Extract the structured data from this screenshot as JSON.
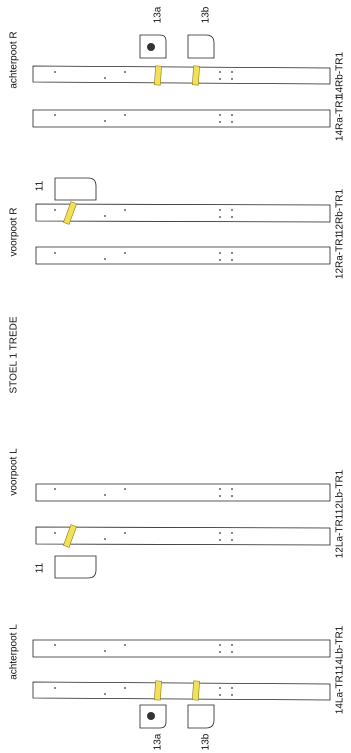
{
  "title": "STOEL 1 TREDE",
  "groups": [
    {
      "label": "achterpoot R",
      "strips": [
        "14Rb-TR1",
        "14Ra-TR1"
      ],
      "parts": [
        "13a",
        "13b"
      ]
    },
    {
      "label": "voorpoot R",
      "strips": [
        "12Rb-TR1",
        "12Ra-TR1"
      ],
      "parts": [
        "11"
      ]
    },
    {
      "label": "voorpoot L",
      "strips": [
        "12Lb-TR1",
        "12La-TR1"
      ],
      "parts": [
        "11"
      ]
    },
    {
      "label": "achterpoot L",
      "strips": [
        "14Lb-TR1",
        "14La-TR1"
      ],
      "parts": [
        "13a",
        "13b"
      ]
    }
  ]
}
